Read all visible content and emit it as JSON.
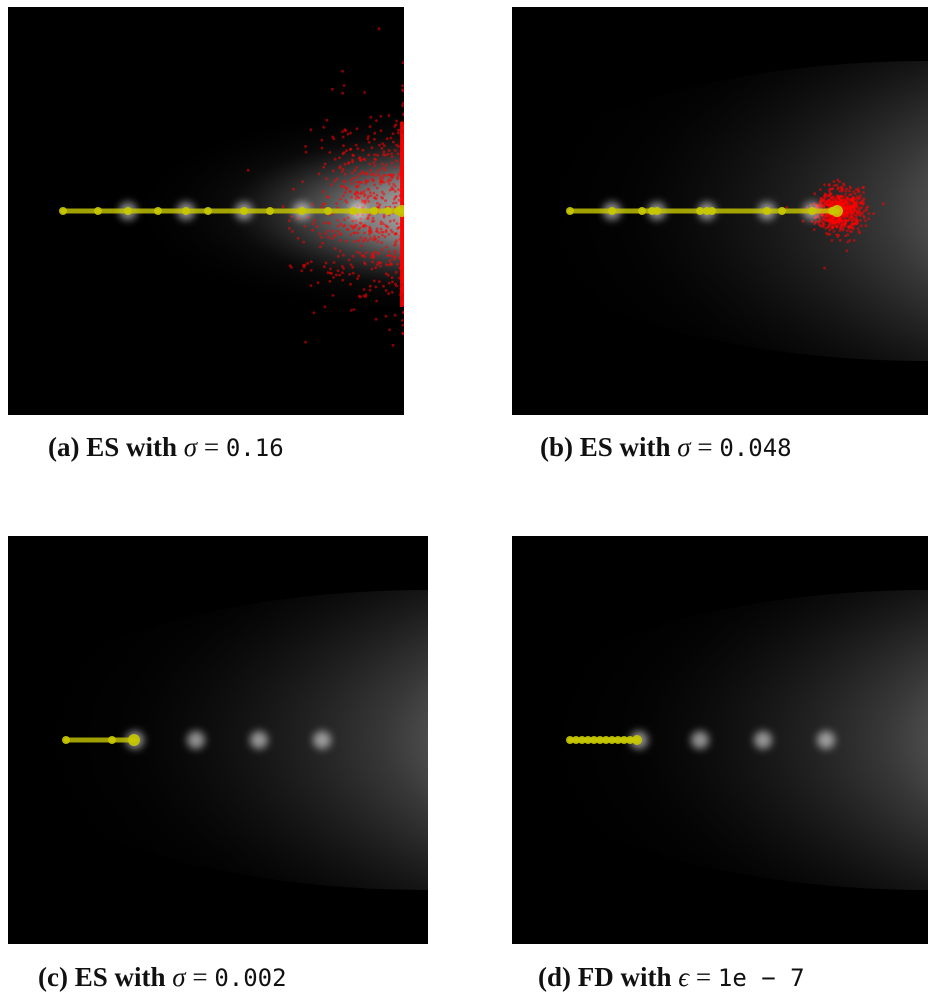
{
  "panels": [
    {
      "id": "a",
      "caption": {
        "label": "(a)",
        "method": "ES with",
        "symbol": "σ",
        "equals": "=",
        "value": "0.16"
      },
      "path_color": "#c8c800",
      "sample_color": "#ff0000"
    },
    {
      "id": "b",
      "caption": {
        "label": "(b)",
        "method": "ES with",
        "symbol": "σ",
        "equals": "=",
        "value": "0.048"
      },
      "path_color": "#c8c800",
      "sample_color": "#ff0000"
    },
    {
      "id": "c",
      "caption": {
        "label": "(c)",
        "method": "ES with",
        "symbol": "σ",
        "equals": "=",
        "value": "0.002"
      },
      "path_color": "#c8c800"
    },
    {
      "id": "d",
      "caption": {
        "label": "(d)",
        "method": "FD with",
        "symbol": "ϵ",
        "equals": "=",
        "value": "1e − 7"
      },
      "path_color": "#c8c800"
    }
  ]
}
